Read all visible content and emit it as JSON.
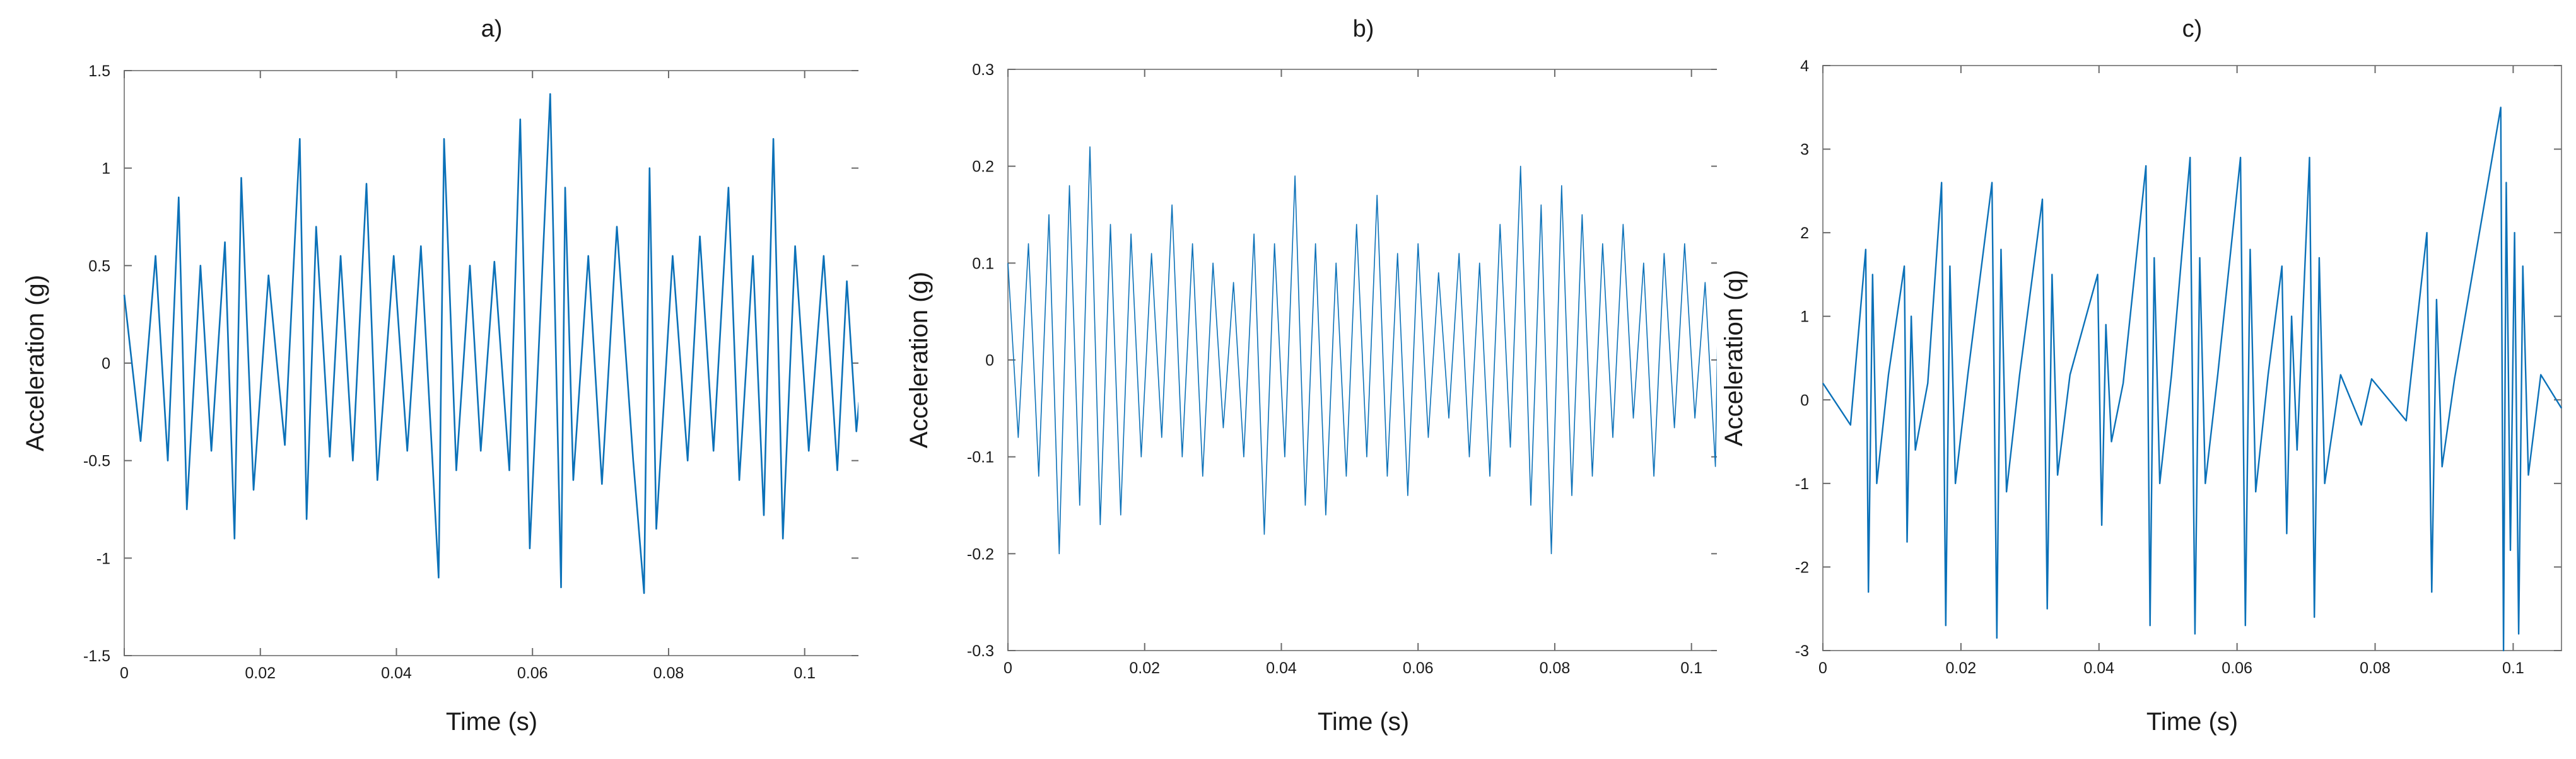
{
  "figure": {
    "colors": {
      "trace": "#0b71b8",
      "frame": "#8a8a8a",
      "text": "#1a1a1a"
    }
  },
  "chart_data": [
    {
      "type": "line",
      "title": "a)",
      "xlabel": "Time (s)",
      "ylabel": "Acceleration (g)",
      "xlim": [
        0,
        0.108
      ],
      "ylim": [
        -1.5,
        1.5
      ],
      "xticks": [
        0,
        0.02,
        0.04,
        0.06,
        0.08,
        0.1
      ],
      "xtick_labels": [
        "0",
        "0.02",
        "0.04",
        "0.06",
        "0.08",
        "0.1"
      ],
      "yticks": [
        -1.5,
        -1,
        -0.5,
        0,
        0.5,
        1,
        1.5
      ],
      "ytick_labels": [
        "-1.5",
        "-1",
        "-0.5",
        "0",
        "0.5",
        "1",
        "1.5"
      ],
      "grid": false,
      "series": [
        {
          "line_width": 2.6,
          "x": [
            0,
            0.0024,
            0.0046,
            0.0064,
            0.008,
            0.0092,
            0.0112,
            0.0128,
            0.0148,
            0.0162,
            0.0172,
            0.019,
            0.0212,
            0.0236,
            0.0258,
            0.0268,
            0.0282,
            0.0302,
            0.0318,
            0.0336,
            0.0356,
            0.0372,
            0.0396,
            0.0416,
            0.0436,
            0.0456,
            0.0462,
            0.047,
            0.0488,
            0.0508,
            0.0524,
            0.0544,
            0.0566,
            0.0582,
            0.0596,
            0.0626,
            0.0642,
            0.0648,
            0.066,
            0.0682,
            0.0702,
            0.0724,
            0.0748,
            0.0764,
            0.0772,
            0.0782,
            0.0806,
            0.0828,
            0.0846,
            0.0866,
            0.0888,
            0.0904,
            0.0924,
            0.094,
            0.0954,
            0.0968,
            0.0986,
            0.1006,
            0.1028,
            0.1048,
            0.1062,
            0.1076,
            0.108
          ],
          "y": [
            0.35,
            -0.4,
            0.55,
            -0.5,
            0.85,
            -0.75,
            0.5,
            -0.45,
            0.62,
            -0.9,
            0.95,
            -0.65,
            0.45,
            -0.42,
            1.15,
            -0.8,
            0.7,
            -0.48,
            0.55,
            -0.5,
            0.92,
            -0.6,
            0.55,
            -0.45,
            0.6,
            -0.7,
            -1.1,
            1.15,
            -0.55,
            0.5,
            -0.45,
            0.52,
            -0.55,
            1.25,
            -0.95,
            1.38,
            -1.15,
            0.9,
            -0.6,
            0.55,
            -0.62,
            0.7,
            -0.5,
            -1.18,
            1.0,
            -0.85,
            0.55,
            -0.5,
            0.65,
            -0.45,
            0.9,
            -0.6,
            0.55,
            -0.78,
            1.15,
            -0.9,
            0.6,
            -0.45,
            0.55,
            -0.55,
            0.42,
            -0.35,
            -0.2
          ]
        }
      ]
    },
    {
      "type": "line",
      "title": "b)",
      "xlabel": "Time (s)",
      "ylabel": "Acceleration (g)",
      "xlim": [
        0,
        0.104
      ],
      "ylim": [
        -0.3,
        0.3
      ],
      "xticks": [
        0,
        0.02,
        0.04,
        0.06,
        0.08,
        0.1
      ],
      "xtick_labels": [
        "0",
        "0.02",
        "0.04",
        "0.06",
        "0.08",
        "0.1"
      ],
      "yticks": [
        -0.3,
        -0.2,
        -0.1,
        0,
        0.1,
        0.2,
        0.3
      ],
      "ytick_labels": [
        "-0.3",
        "-0.2",
        "-0.1",
        "0",
        "0.1",
        "0.2",
        "0.3"
      ],
      "grid": false,
      "series": [
        {
          "line_width": 1.6,
          "x": [
            0,
            0.0015,
            0.003,
            0.0045,
            0.006,
            0.0075,
            0.009,
            0.0105,
            0.012,
            0.0135,
            0.015,
            0.0165,
            0.018,
            0.0195,
            0.021,
            0.0225,
            0.024,
            0.0255,
            0.027,
            0.0285,
            0.03,
            0.0315,
            0.033,
            0.0345,
            0.036,
            0.0375,
            0.039,
            0.0405,
            0.042,
            0.0435,
            0.045,
            0.0465,
            0.048,
            0.0495,
            0.051,
            0.0525,
            0.054,
            0.0555,
            0.057,
            0.0585,
            0.06,
            0.0615,
            0.063,
            0.0645,
            0.066,
            0.0675,
            0.069,
            0.0705,
            0.072,
            0.0735,
            0.075,
            0.0765,
            0.078,
            0.0795,
            0.081,
            0.0825,
            0.084,
            0.0855,
            0.087,
            0.0885,
            0.09,
            0.0915,
            0.093,
            0.0945,
            0.096,
            0.0975,
            0.099,
            0.1005,
            0.102,
            0.1035,
            0.104
          ],
          "y": [
            0.1,
            -0.08,
            0.12,
            -0.12,
            0.15,
            -0.2,
            0.18,
            -0.15,
            0.22,
            -0.17,
            0.14,
            -0.16,
            0.13,
            -0.1,
            0.11,
            -0.08,
            0.16,
            -0.1,
            0.12,
            -0.12,
            0.1,
            -0.07,
            0.08,
            -0.1,
            0.13,
            -0.18,
            0.12,
            -0.1,
            0.19,
            -0.15,
            0.12,
            -0.16,
            0.1,
            -0.12,
            0.14,
            -0.1,
            0.17,
            -0.12,
            0.11,
            -0.14,
            0.12,
            -0.08,
            0.09,
            -0.06,
            0.11,
            -0.1,
            0.1,
            -0.12,
            0.14,
            -0.09,
            0.2,
            -0.15,
            0.16,
            -0.2,
            0.18,
            -0.14,
            0.15,
            -0.12,
            0.12,
            -0.08,
            0.14,
            -0.06,
            0.1,
            -0.12,
            0.11,
            -0.07,
            0.12,
            -0.06,
            0.08,
            -0.11,
            0.1
          ]
        }
      ]
    },
    {
      "type": "line",
      "title": "c)",
      "xlabel": "Time (s)",
      "ylabel": "Acceleration (q)",
      "xlim": [
        0,
        0.107
      ],
      "ylim": [
        -3,
        4
      ],
      "xticks": [
        0,
        0.02,
        0.04,
        0.06,
        0.08,
        0.1
      ],
      "xtick_labels": [
        "0",
        "0.02",
        "0.04",
        "0.06",
        "0.08",
        "0.1"
      ],
      "yticks": [
        -3,
        -2,
        -1,
        0,
        1,
        2,
        3,
        4
      ],
      "ytick_labels": [
        "-3",
        "-2",
        "-1",
        "0",
        "1",
        "2",
        "3",
        "4"
      ],
      "grid": false,
      "series": [
        {
          "line_width": 2.4,
          "x": [
            0,
            0.004,
            0.0062,
            0.0066,
            0.0072,
            0.0078,
            0.0095,
            0.0118,
            0.0122,
            0.0128,
            0.0134,
            0.0152,
            0.0172,
            0.0178,
            0.0184,
            0.0192,
            0.021,
            0.0245,
            0.0252,
            0.0258,
            0.0266,
            0.0285,
            0.0318,
            0.0325,
            0.0332,
            0.034,
            0.0358,
            0.0398,
            0.0404,
            0.041,
            0.0418,
            0.0435,
            0.0468,
            0.0474,
            0.048,
            0.0488,
            0.0505,
            0.0532,
            0.0539,
            0.0546,
            0.0554,
            0.0572,
            0.0605,
            0.0612,
            0.0619,
            0.0627,
            0.0645,
            0.0665,
            0.0672,
            0.0679,
            0.0687,
            0.0705,
            0.0712,
            0.0719,
            0.0727,
            0.075,
            0.078,
            0.0795,
            0.0845,
            0.0875,
            0.0882,
            0.0889,
            0.0897,
            0.0915,
            0.0982,
            0.0986,
            0.099,
            0.0996,
            0.1002,
            0.1008,
            0.1014,
            0.1022,
            0.104,
            0.107
          ],
          "y": [
            0.2,
            -0.3,
            1.8,
            -2.3,
            1.5,
            -1.0,
            0.3,
            1.6,
            -1.7,
            1.0,
            -0.6,
            0.2,
            2.6,
            -2.7,
            1.6,
            -1.0,
            0.3,
            2.6,
            -2.85,
            1.8,
            -1.1,
            0.3,
            2.4,
            -2.5,
            1.5,
            -0.9,
            0.3,
            1.5,
            -1.5,
            0.9,
            -0.5,
            0.2,
            2.8,
            -2.7,
            1.7,
            -1.0,
            0.3,
            2.9,
            -2.8,
            1.7,
            -1.0,
            0.3,
            2.9,
            -2.7,
            1.8,
            -1.1,
            0.3,
            1.6,
            -1.6,
            1.0,
            -0.6,
            2.9,
            -2.6,
            1.7,
            -1.0,
            0.3,
            -0.3,
            0.25,
            -0.25,
            2.0,
            -2.3,
            1.2,
            -0.8,
            0.25,
            3.5,
            -3.0,
            2.6,
            -1.8,
            2.0,
            -2.8,
            1.6,
            -0.9,
            0.3,
            -0.1
          ]
        }
      ]
    }
  ]
}
